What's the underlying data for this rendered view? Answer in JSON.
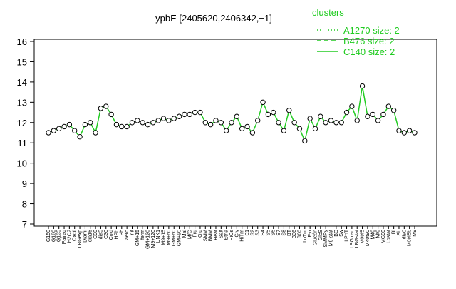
{
  "chart_data": {
    "type": "line",
    "title": "ypbE [2405620,2406342,−1]",
    "categories": [
      "G150",
      "G180",
      "G135",
      "Pairaq",
      "H2O2",
      "Oxctl",
      "LBGexp",
      "Diami",
      "dia15",
      "C90",
      "dia5",
      "C30",
      "Cold",
      "HPh",
      "LPh",
      "aero",
      "nit",
      "GM+15",
      "ferm",
      "GM+120",
      "M9+120",
      "UNK1",
      "M9+15",
      "M9+60",
      "GM+60",
      "GM+90",
      "Mal",
      "M/G",
      "Fru",
      "Glu",
      "SMM",
      "BMM",
      "Heat",
      "Salt",
      "Etha",
      "HiOs",
      "Gly",
      "HiTm",
      "S1",
      "S2",
      "S3",
      "S4",
      "S5",
      "S6",
      "S7",
      "S8",
      "BT",
      "B36",
      "B60",
      "LoTm",
      "Pyr",
      "Glucon",
      "GlcS",
      "SMMPy",
      "M9-stat",
      "BC",
      "Sw",
      "LPhT",
      "LBGtran",
      "LBGstat",
      "M0t45",
      "M40t90",
      "M40",
      "Mt0",
      "MG90",
      "Lbstat",
      "Bl",
      "Sb",
      "dia0",
      "M0t45b",
      "M9"
    ],
    "values": [
      11.5,
      11.6,
      11.7,
      11.8,
      11.9,
      11.6,
      11.3,
      11.9,
      12.0,
      11.5,
      12.7,
      12.8,
      12.4,
      11.9,
      11.8,
      11.8,
      12.0,
      12.1,
      12.0,
      11.9,
      12.0,
      12.1,
      12.2,
      12.1,
      12.2,
      12.3,
      12.4,
      12.4,
      12.5,
      12.5,
      12.0,
      11.9,
      12.1,
      12.0,
      11.6,
      12.0,
      12.3,
      11.7,
      11.8,
      11.5,
      12.1,
      13.0,
      12.4,
      12.5,
      12.0,
      11.6,
      12.6,
      12.0,
      11.7,
      11.1,
      12.2,
      11.7,
      12.3,
      12.0,
      12.1,
      12.0,
      12.0,
      12.5,
      12.8,
      12.1,
      13.8,
      12.3,
      12.4,
      12.1,
      12.4,
      12.8,
      12.6,
      11.6,
      11.5,
      11.6,
      11.5
    ],
    "color": "#22cc22",
    "ylim": [
      7,
      16
    ],
    "yticks": [
      7,
      8,
      9,
      10,
      11,
      12,
      13,
      14,
      15,
      16
    ],
    "legend": {
      "title": "clusters",
      "entries": [
        {
          "label": "A1270 size: 2",
          "dash": "dotted"
        },
        {
          "label": "B476 size: 2",
          "dash": "dashed"
        },
        {
          "label": "C140 size: 2",
          "dash": "solid"
        }
      ]
    }
  }
}
